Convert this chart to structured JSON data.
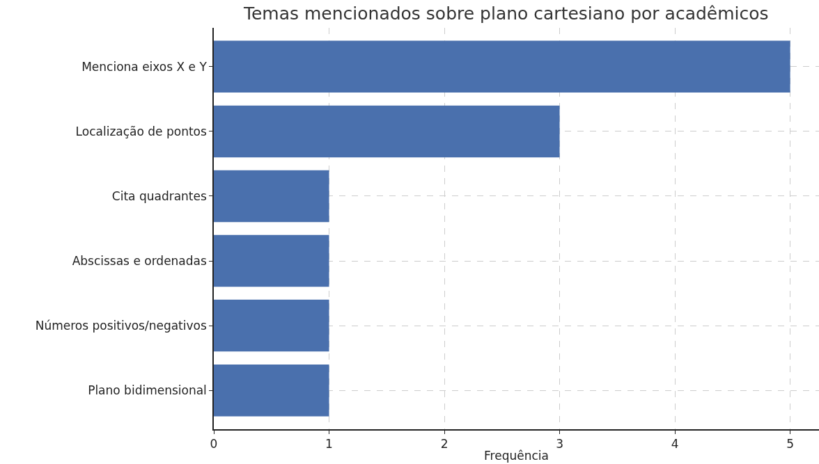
{
  "chart_data": {
    "type": "bar",
    "orientation": "horizontal",
    "title": "Temas mencionados sobre plano cartesiano por acadêmicos",
    "xlabel": "Frequência",
    "categories": [
      "Menciona eixos X e Y",
      "Localização de pontos",
      "Cita quadrantes",
      "Abscissas e ordenadas",
      "Números positivos/negativos",
      "Plano bidimensional"
    ],
    "values": [
      5,
      3,
      1,
      1,
      1,
      1
    ],
    "color": "#4a70ad",
    "xlim": [
      0,
      5.25
    ],
    "xticks": [
      0,
      1,
      2,
      3,
      4,
      5
    ],
    "grid": true,
    "line_style": "dashed"
  }
}
